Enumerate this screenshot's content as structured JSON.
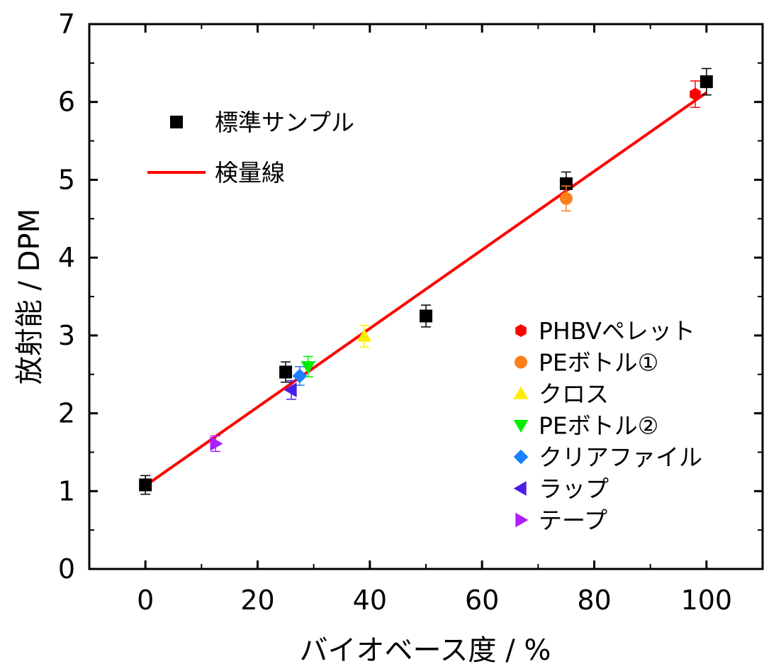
{
  "chart_data": {
    "type": "scatter",
    "xlabel": "バイオベース度 / %",
    "ylabel": "放射能 / DPM",
    "xlim": [
      -10,
      110
    ],
    "ylim": [
      0,
      7
    ],
    "x_ticks": [
      0,
      20,
      40,
      60,
      80,
      100
    ],
    "y_ticks": [
      0,
      1,
      2,
      3,
      4,
      5,
      6,
      7
    ],
    "grid": false,
    "legend_main": {
      "placement": "top-left",
      "entries": [
        {
          "label": "標準サンプル",
          "marker": "square",
          "color": "#000000"
        },
        {
          "label": "検量線",
          "marker": "line",
          "color": "#ff0000"
        }
      ]
    },
    "legend_samples": {
      "placement": "bottom-right",
      "entries": [
        {
          "label": "PHBVペレット",
          "marker": "hexagon",
          "color": "#ff0000"
        },
        {
          "label": "PEボトル①",
          "marker": "circle",
          "color": "#ff7f1a"
        },
        {
          "label": "クロス",
          "marker": "triangle-up",
          "color": "#ffee00"
        },
        {
          "label": "PEボトル②",
          "marker": "triangle-down",
          "color": "#00ee00"
        },
        {
          "label": "クリアファイル",
          "marker": "diamond",
          "color": "#1a80ff"
        },
        {
          "label": "ラップ",
          "marker": "triangle-left",
          "color": "#4b1ee6"
        },
        {
          "label": "テープ",
          "marker": "triangle-right",
          "color": "#a91fff"
        }
      ]
    },
    "series": [
      {
        "name": "標準サンプル",
        "marker": "square",
        "color": "#000000",
        "points": [
          {
            "x": 0,
            "y": 1.08,
            "err": 0.12
          },
          {
            "x": 25,
            "y": 2.53,
            "err": 0.13
          },
          {
            "x": 50,
            "y": 3.25,
            "err": 0.14
          },
          {
            "x": 75,
            "y": 4.95,
            "err": 0.15
          },
          {
            "x": 100,
            "y": 6.26,
            "err": 0.17
          }
        ]
      },
      {
        "name": "PHBVペレット",
        "marker": "hexagon",
        "color": "#ff0000",
        "points": [
          {
            "x": 98,
            "y": 6.1,
            "err": 0.17
          }
        ]
      },
      {
        "name": "PEボトル①",
        "marker": "circle",
        "color": "#ff7f1a",
        "points": [
          {
            "x": 75,
            "y": 4.76,
            "err": 0.16
          }
        ]
      },
      {
        "name": "クロス",
        "marker": "triangle-up",
        "color": "#ffee00",
        "points": [
          {
            "x": 39,
            "y": 2.99,
            "err": 0.14
          }
        ]
      },
      {
        "name": "PEボトル②",
        "marker": "triangle-down",
        "color": "#00ee00",
        "points": [
          {
            "x": 29,
            "y": 2.6,
            "err": 0.13
          }
        ]
      },
      {
        "name": "クリアファイル",
        "marker": "diamond",
        "color": "#1a80ff",
        "points": [
          {
            "x": 27.5,
            "y": 2.48,
            "err": 0.12
          }
        ]
      },
      {
        "name": "ラップ",
        "marker": "triangle-left",
        "color": "#4b1ee6",
        "points": [
          {
            "x": 26,
            "y": 2.3,
            "err": 0.12
          }
        ]
      },
      {
        "name": "テープ",
        "marker": "triangle-right",
        "color": "#a91fff",
        "points": [
          {
            "x": 12.5,
            "y": 1.61,
            "err": 0.1
          }
        ]
      }
    ],
    "fit_line": {
      "name": "検量線",
      "color": "#ff0000",
      "x": [
        0,
        100
      ],
      "y": [
        1.07,
        6.12
      ]
    }
  }
}
